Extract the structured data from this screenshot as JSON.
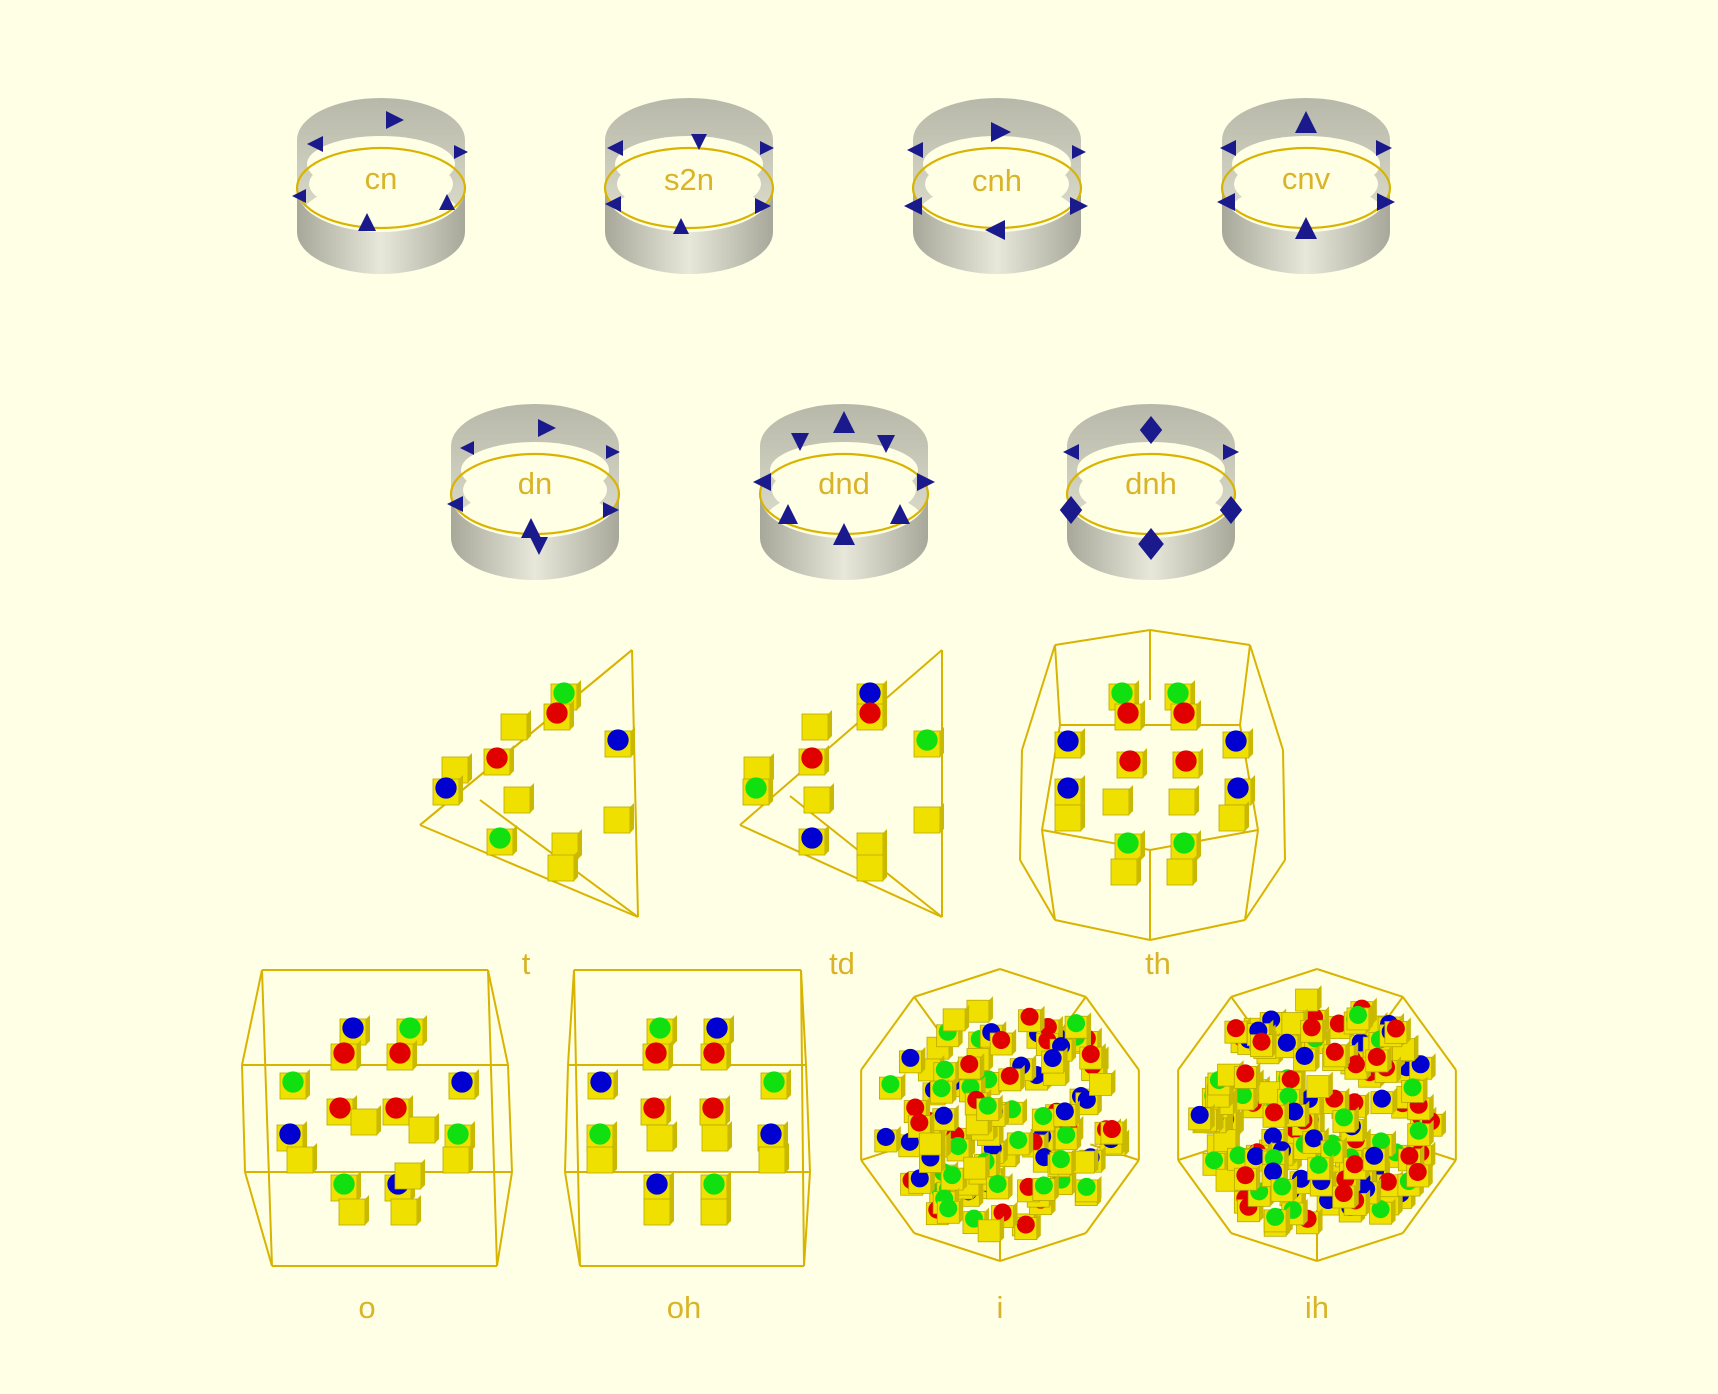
{
  "colors": {
    "background": "#ffffe5",
    "label": "#d9b42a",
    "band": "#c8c8b8",
    "ring": "#d8b400",
    "marker": "#1a1a8c",
    "cube": "#f0e000",
    "dot_red": "#e00000",
    "dot_green": "#10e010",
    "dot_blue": "#0000d0"
  },
  "groups": {
    "cn": "cn",
    "s2n": "s2n",
    "cnh": "cnh",
    "cnv": "cnv",
    "dn": "dn",
    "dnd": "dnd",
    "dnh": "dnh",
    "t": "t",
    "td": "td",
    "th": "th",
    "o": "o",
    "oh": "oh",
    "i": "i",
    "ih": "ih"
  }
}
